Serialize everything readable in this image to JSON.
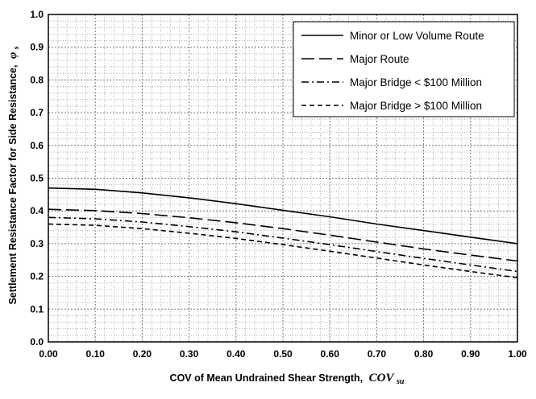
{
  "chart_data": {
    "type": "line",
    "xlabel": "COV of Mean Undrained Shear Strength,",
    "xlabel_symbol": "COV",
    "xlabel_subscript": "su",
    "ylabel": "Settlement Resistance Factor for Side Resistance,",
    "ylabel_symbol": "φ",
    "ylabel_subscript": "s",
    "xlim": [
      0,
      1
    ],
    "ylim": [
      0,
      1
    ],
    "x_ticks": [
      "0.00",
      "0.10",
      "0.20",
      "0.30",
      "0.40",
      "0.50",
      "0.60",
      "0.70",
      "0.80",
      "0.90",
      "1.00"
    ],
    "y_ticks": [
      "0.0",
      "0.1",
      "0.2",
      "0.3",
      "0.4",
      "0.5",
      "0.6",
      "0.7",
      "0.8",
      "0.9",
      "1.0"
    ],
    "grid": true,
    "legend_position": "top-right",
    "x": [
      0.0,
      0.1,
      0.2,
      0.3,
      0.4,
      0.5,
      0.6,
      0.7,
      0.8,
      0.9,
      1.0
    ],
    "series": [
      {
        "name": "Minor or Low Volume Route",
        "style": "solid",
        "values": [
          0.47,
          0.466,
          0.455,
          0.44,
          0.422,
          0.402,
          0.382,
          0.36,
          0.34,
          0.32,
          0.3
        ]
      },
      {
        "name": "Major Route",
        "style": "long-dash",
        "values": [
          0.405,
          0.401,
          0.392,
          0.379,
          0.364,
          0.346,
          0.326,
          0.305,
          0.284,
          0.265,
          0.247
        ]
      },
      {
        "name": "Major Bridge < $100 Million",
        "style": "dash-dot",
        "values": [
          0.38,
          0.376,
          0.366,
          0.352,
          0.336,
          0.317,
          0.297,
          0.276,
          0.255,
          0.235,
          0.215
        ]
      },
      {
        "name": "Major Bridge > $100 Million",
        "style": "short-dash",
        "values": [
          0.36,
          0.356,
          0.346,
          0.332,
          0.316,
          0.297,
          0.277,
          0.256,
          0.235,
          0.215,
          0.196
        ]
      }
    ]
  }
}
